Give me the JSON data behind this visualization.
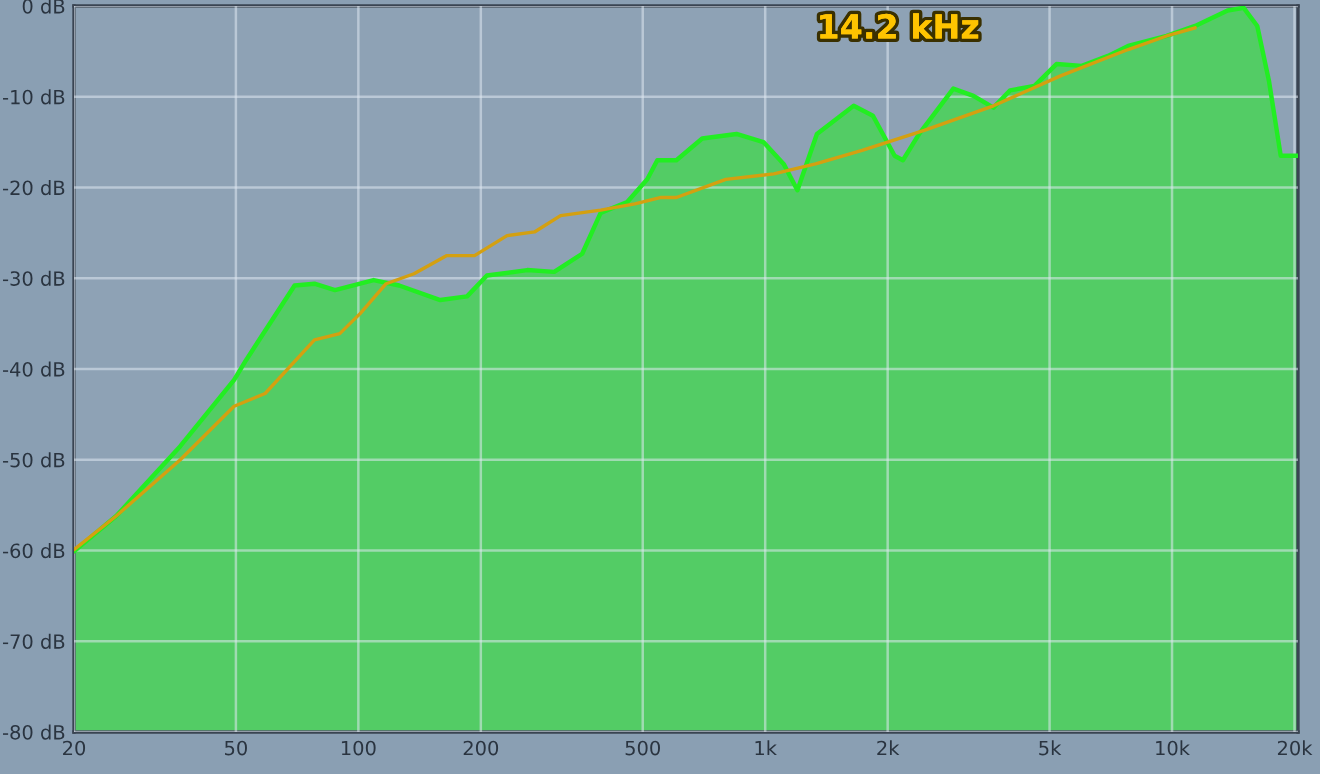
{
  "chart_data": {
    "type": "line",
    "log": "x",
    "grid": true,
    "legend": false,
    "xlim": [
      20,
      20400
    ],
    "ylim": [
      -80,
      0
    ],
    "xticks": [
      20,
      50,
      100,
      200,
      500,
      {
        "value": 1000,
        "label": "1k"
      },
      {
        "value": 2000,
        "label": "2k"
      },
      {
        "value": 5000,
        "label": "5k"
      },
      {
        "value": 10000,
        "label": "10k"
      },
      {
        "value": 20000,
        "label": "20k"
      }
    ],
    "yticks": [
      {
        "value": 0,
        "label": "0 dB"
      },
      {
        "value": -10,
        "label": "-10 dB"
      },
      {
        "value": -20,
        "label": "-20 dB"
      },
      {
        "value": -30,
        "label": "-30 dB"
      },
      {
        "value": -40,
        "label": "-40 dB"
      },
      {
        "value": -50,
        "label": "-50 dB"
      },
      {
        "value": -60,
        "label": "-60 dB"
      },
      {
        "value": -70,
        "label": "-70 dB"
      },
      {
        "value": -80,
        "label": "-80 dB"
      }
    ],
    "annotations": [
      "14.2 kHz"
    ],
    "series": [
      {
        "color": "#22ee22",
        "x": [
          20,
          25.4,
          36.5,
          49.5,
          53,
          69.7,
          78,
          87.6,
          109,
          126,
          159,
          185,
          207,
          260,
          303,
          355,
          394,
          458,
          513,
          543,
          605,
          700,
          850,
          990,
          1110,
          1200,
          1340,
          1650,
          1840,
          2080,
          2180,
          2390,
          2900,
          3250,
          3640,
          4000,
          4590,
          5200,
          6000,
          6960,
          7800,
          9700,
          11400,
          13700,
          15000,
          16200,
          17300,
          18500,
          20400
        ],
        "values": [
          -60.1,
          -56.2,
          -48.5,
          -41.2,
          -39.0,
          -30.8,
          -30.6,
          -31.3,
          -30.2,
          -30.8,
          -32.4,
          -32.0,
          -29.7,
          -29.1,
          -29.3,
          -27.3,
          -22.8,
          -21.6,
          -19.1,
          -17.0,
          -17.0,
          -14.6,
          -14.1,
          -15.0,
          -17.4,
          -20.3,
          -14.1,
          -11.0,
          -12.1,
          -16.5,
          -17.0,
          -14.1,
          -9.1,
          -9.9,
          -11.2,
          -9.3,
          -8.8,
          -6.4,
          -6.6,
          -5.5,
          -4.4,
          -3.3,
          -2.2,
          -0.5,
          -0.2,
          -2.2,
          -8.2,
          -16.5,
          -16.5
        ],
        "lower": [
          -80,
          -80,
          -80,
          -80,
          -80,
          -80,
          -80,
          -80,
          -80,
          -80,
          -80,
          -80,
          -80,
          -80,
          -80,
          -80,
          -80,
          -80,
          -80,
          -80,
          -80,
          -80,
          -80,
          -80,
          -80,
          -80,
          -80,
          -80,
          -80,
          -80,
          -80,
          -80,
          -80,
          -80,
          -80,
          -80,
          -80,
          -80,
          -80,
          -80,
          -80,
          -80,
          -80,
          -80,
          -80,
          -80,
          -80,
          -80,
          -80
        ],
        "upper": [
          -60.1,
          -56.2,
          -48.5,
          -41.2,
          -39.0,
          -30.8,
          -30.6,
          -31.3,
          -30.2,
          -30.8,
          -32.4,
          -32.0,
          -29.7,
          -29.1,
          -29.3,
          -27.3,
          -22.8,
          -21.6,
          -19.1,
          -17.0,
          -17.0,
          -14.6,
          -14.1,
          -15.0,
          -17.4,
          -20.3,
          -14.1,
          -11.0,
          -12.1,
          -16.5,
          -17.0,
          -14.1,
          -9.1,
          -9.9,
          -11.2,
          -9.3,
          -8.8,
          -6.4,
          -6.6,
          -5.5,
          -4.4,
          -3.3,
          -2.2,
          -0.5,
          -0.2,
          -2.2,
          -8.2,
          -16.5,
          -16.5
        ]
      },
      {
        "color": "#d4a010",
        "x": [
          20,
          25.4,
          36.5,
          49.5,
          59,
          78,
          90,
          101,
          117,
          137,
          165,
          193,
          232,
          271,
          314,
          394,
          478,
          555,
          605,
          800,
          1050,
          1330,
          1730,
          2460,
          3640,
          5320,
          7800,
          9700,
          11400
        ],
        "values": [
          -59.9,
          -56.2,
          -50.0,
          -44.1,
          -42.7,
          -36.8,
          -36.1,
          -33.9,
          -30.6,
          -29.5,
          -27.5,
          -27.5,
          -25.3,
          -24.9,
          -23.1,
          -22.5,
          -21.8,
          -21.1,
          -21.1,
          -19.1,
          -18.5,
          -17.4,
          -15.9,
          -13.7,
          -11.0,
          -7.7,
          -4.8,
          -3.3,
          -2.4
        ]
      }
    ]
  }
}
